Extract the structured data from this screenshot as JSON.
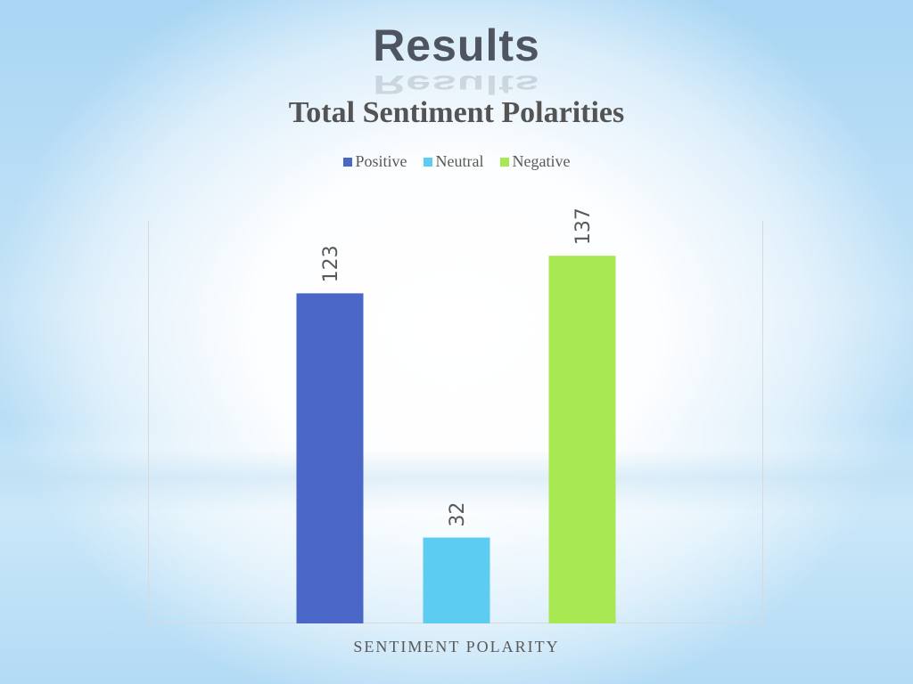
{
  "slide": {
    "title": "Results"
  },
  "chart_data": {
    "type": "bar",
    "title": "Total Sentiment Polarities",
    "xlabel": "SENTIMENT POLARITY",
    "ylabel": "",
    "ylim": [
      0,
      150
    ],
    "grid": false,
    "legend_position": "top",
    "series": [
      {
        "name": "Positive",
        "values": [
          123
        ],
        "color": "#4a66c6"
      },
      {
        "name": "Neutral",
        "values": [
          32
        ],
        "color": "#5ccdf0"
      },
      {
        "name": "Negative",
        "values": [
          137
        ],
        "color": "#a8e853"
      }
    ],
    "data_labels": [
      "123",
      "32",
      "137"
    ]
  }
}
